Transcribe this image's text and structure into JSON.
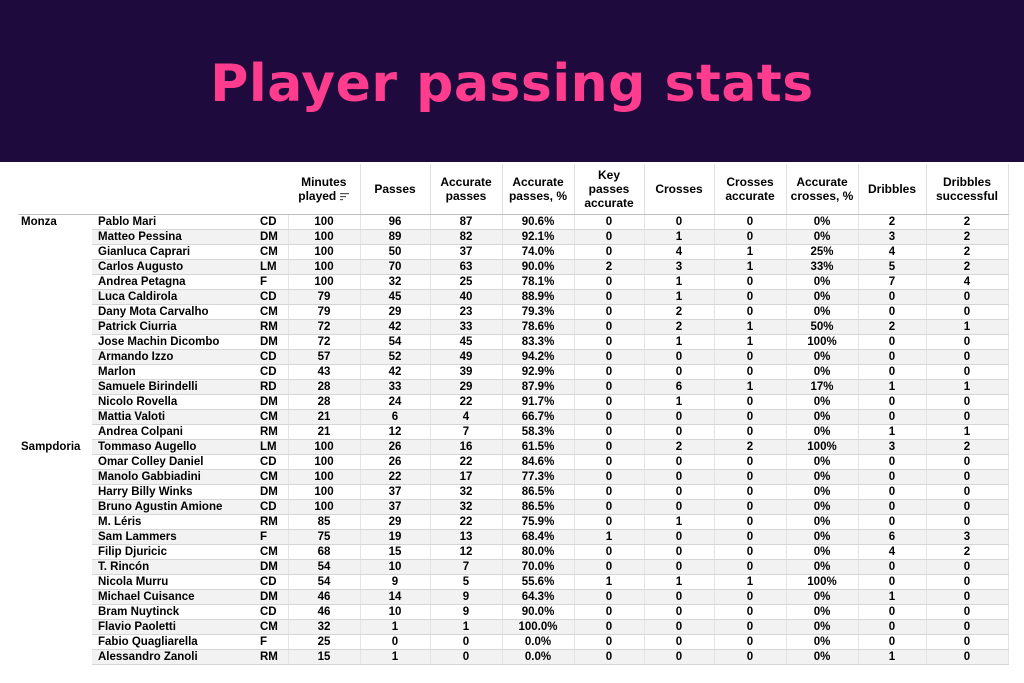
{
  "title": "Player passing stats",
  "colors": {
    "banner_bg": "#1e0a3c",
    "title_color": "#ff3c8e"
  },
  "chart_data": {
    "type": "table",
    "columns": [
      "Minutes played",
      "Passes",
      "Accurate passes",
      "Accurate passes, %",
      "Key passes accurate",
      "Crosses",
      "Crosses accurate",
      "Accurate crosses, %",
      "Dribbles",
      "Dribbles successful"
    ],
    "sorted_column": "Minutes played",
    "rows": [
      {
        "team": "Monza",
        "player": "Pablo Mari",
        "pos": "CD",
        "values": [
          "100",
          "96",
          "87",
          "90.6%",
          "0",
          "0",
          "0",
          "0%",
          "2",
          "2"
        ]
      },
      {
        "team": "",
        "player": "Matteo Pessina",
        "pos": "DM",
        "values": [
          "100",
          "89",
          "82",
          "92.1%",
          "0",
          "1",
          "0",
          "0%",
          "3",
          "2"
        ]
      },
      {
        "team": "",
        "player": "Gianluca Caprari",
        "pos": "CM",
        "values": [
          "100",
          "50",
          "37",
          "74.0%",
          "0",
          "4",
          "1",
          "25%",
          "4",
          "2"
        ]
      },
      {
        "team": "",
        "player": "Carlos Augusto",
        "pos": "LM",
        "values": [
          "100",
          "70",
          "63",
          "90.0%",
          "2",
          "3",
          "1",
          "33%",
          "5",
          "2"
        ]
      },
      {
        "team": "",
        "player": "Andrea Petagna",
        "pos": "F",
        "values": [
          "100",
          "32",
          "25",
          "78.1%",
          "0",
          "1",
          "0",
          "0%",
          "7",
          "4"
        ]
      },
      {
        "team": "",
        "player": "Luca Caldirola",
        "pos": "CD",
        "values": [
          "79",
          "45",
          "40",
          "88.9%",
          "0",
          "1",
          "0",
          "0%",
          "0",
          "0"
        ]
      },
      {
        "team": "",
        "player": "Dany Mota Carvalho",
        "pos": "CM",
        "values": [
          "79",
          "29",
          "23",
          "79.3%",
          "0",
          "2",
          "0",
          "0%",
          "0",
          "0"
        ]
      },
      {
        "team": "",
        "player": "Patrick Ciurria",
        "pos": "RM",
        "values": [
          "72",
          "42",
          "33",
          "78.6%",
          "0",
          "2",
          "1",
          "50%",
          "2",
          "1"
        ]
      },
      {
        "team": "",
        "player": "Jose Machin Dicombo",
        "pos": "DM",
        "values": [
          "72",
          "54",
          "45",
          "83.3%",
          "0",
          "1",
          "1",
          "100%",
          "0",
          "0"
        ]
      },
      {
        "team": "",
        "player": "Armando Izzo",
        "pos": "CD",
        "values": [
          "57",
          "52",
          "49",
          "94.2%",
          "0",
          "0",
          "0",
          "0%",
          "0",
          "0"
        ]
      },
      {
        "team": "",
        "player": "Marlon",
        "pos": "CD",
        "values": [
          "43",
          "42",
          "39",
          "92.9%",
          "0",
          "0",
          "0",
          "0%",
          "0",
          "0"
        ]
      },
      {
        "team": "",
        "player": "Samuele Birindelli",
        "pos": "RD",
        "values": [
          "28",
          "33",
          "29",
          "87.9%",
          "0",
          "6",
          "1",
          "17%",
          "1",
          "1"
        ]
      },
      {
        "team": "",
        "player": "Nicolo Rovella",
        "pos": "DM",
        "values": [
          "28",
          "24",
          "22",
          "91.7%",
          "0",
          "1",
          "0",
          "0%",
          "0",
          "0"
        ]
      },
      {
        "team": "",
        "player": "Mattia Valoti",
        "pos": "CM",
        "values": [
          "21",
          "6",
          "4",
          "66.7%",
          "0",
          "0",
          "0",
          "0%",
          "0",
          "0"
        ]
      },
      {
        "team": "",
        "player": "Andrea Colpani",
        "pos": "RM",
        "values": [
          "21",
          "12",
          "7",
          "58.3%",
          "0",
          "0",
          "0",
          "0%",
          "1",
          "1"
        ]
      },
      {
        "team": "Sampdoria",
        "player": "Tommaso Augello",
        "pos": "LM",
        "values": [
          "100",
          "26",
          "16",
          "61.5%",
          "0",
          "2",
          "2",
          "100%",
          "3",
          "2"
        ]
      },
      {
        "team": "",
        "player": "Omar Colley Daniel",
        "pos": "CD",
        "values": [
          "100",
          "26",
          "22",
          "84.6%",
          "0",
          "0",
          "0",
          "0%",
          "0",
          "0"
        ]
      },
      {
        "team": "",
        "player": "Manolo Gabbiadini",
        "pos": "CM",
        "values": [
          "100",
          "22",
          "17",
          "77.3%",
          "0",
          "0",
          "0",
          "0%",
          "0",
          "0"
        ]
      },
      {
        "team": "",
        "player": "Harry Billy Winks",
        "pos": "DM",
        "values": [
          "100",
          "37",
          "32",
          "86.5%",
          "0",
          "0",
          "0",
          "0%",
          "0",
          "0"
        ]
      },
      {
        "team": "",
        "player": "Bruno Agustin Amione",
        "pos": "CD",
        "values": [
          "100",
          "37",
          "32",
          "86.5%",
          "0",
          "0",
          "0",
          "0%",
          "0",
          "0"
        ]
      },
      {
        "team": "",
        "player": "M. Léris",
        "pos": "RM",
        "values": [
          "85",
          "29",
          "22",
          "75.9%",
          "0",
          "1",
          "0",
          "0%",
          "0",
          "0"
        ]
      },
      {
        "team": "",
        "player": "Sam Lammers",
        "pos": "F",
        "values": [
          "75",
          "19",
          "13",
          "68.4%",
          "1",
          "0",
          "0",
          "0%",
          "6",
          "3"
        ]
      },
      {
        "team": "",
        "player": "Filip Djuricic",
        "pos": "CM",
        "values": [
          "68",
          "15",
          "12",
          "80.0%",
          "0",
          "0",
          "0",
          "0%",
          "4",
          "2"
        ]
      },
      {
        "team": "",
        "player": "T. Rincón",
        "pos": "DM",
        "values": [
          "54",
          "10",
          "7",
          "70.0%",
          "0",
          "0",
          "0",
          "0%",
          "0",
          "0"
        ]
      },
      {
        "team": "",
        "player": "Nicola Murru",
        "pos": "CD",
        "values": [
          "54",
          "9",
          "5",
          "55.6%",
          "1",
          "1",
          "1",
          "100%",
          "0",
          "0"
        ]
      },
      {
        "team": "",
        "player": "Michael Cuisance",
        "pos": "DM",
        "values": [
          "46",
          "14",
          "9",
          "64.3%",
          "0",
          "0",
          "0",
          "0%",
          "1",
          "0"
        ]
      },
      {
        "team": "",
        "player": "Bram Nuytinck",
        "pos": "CD",
        "values": [
          "46",
          "10",
          "9",
          "90.0%",
          "0",
          "0",
          "0",
          "0%",
          "0",
          "0"
        ]
      },
      {
        "team": "",
        "player": "Flavio Paoletti",
        "pos": "CM",
        "values": [
          "32",
          "1",
          "1",
          "100.0%",
          "0",
          "0",
          "0",
          "0%",
          "0",
          "0"
        ]
      },
      {
        "team": "",
        "player": "Fabio Quagliarella",
        "pos": "F",
        "values": [
          "25",
          "0",
          "0",
          "0.0%",
          "0",
          "0",
          "0",
          "0%",
          "0",
          "0"
        ]
      },
      {
        "team": "",
        "player": "Alessandro Zanoli",
        "pos": "RM",
        "values": [
          "15",
          "1",
          "0",
          "0.0%",
          "0",
          "0",
          "0",
          "0%",
          "1",
          "0"
        ]
      }
    ]
  }
}
